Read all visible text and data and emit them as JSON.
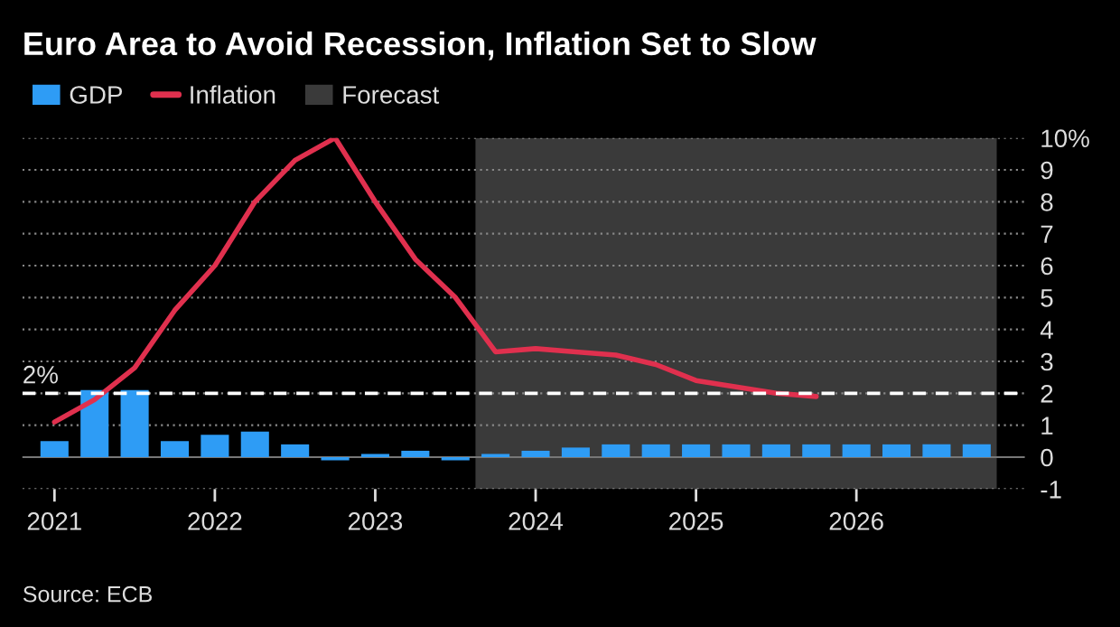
{
  "chart_data": {
    "type": "bar",
    "title": "Euro Area to Avoid Recession, Inflation Set to Slow",
    "x": [
      2021.0,
      2021.25,
      2021.5,
      2021.75,
      2022.0,
      2022.25,
      2022.5,
      2022.75,
      2023.0,
      2023.25,
      2023.5,
      2023.75,
      2024.0,
      2024.25,
      2024.5,
      2024.75,
      2025.0,
      2025.25,
      2025.5,
      2025.75,
      2026.0,
      2026.25,
      2026.5,
      2026.75
    ],
    "series": [
      {
        "name": "GDP",
        "color": "#2e9cf5",
        "values": [
          0.5,
          2.1,
          2.1,
          0.5,
          0.7,
          0.8,
          0.4,
          -0.1,
          0.1,
          0.2,
          -0.1,
          0.1,
          0.2,
          0.3,
          0.4,
          0.4,
          0.4,
          0.4,
          0.4,
          0.4,
          0.4,
          0.4,
          0.4,
          0.4
        ]
      },
      {
        "name": "Inflation",
        "type": "line",
        "color": "#e0304e",
        "values": [
          1.1,
          1.8,
          2.8,
          4.6,
          6.0,
          8.0,
          9.3,
          10.0,
          8.0,
          6.2,
          5.0,
          3.3,
          3.4,
          3.3,
          3.2,
          2.9,
          2.4,
          2.2,
          2.0,
          1.9,
          null,
          null,
          null,
          null
        ]
      }
    ],
    "bands": [
      {
        "axis": "x",
        "from": 2023.625,
        "to": 2026.875,
        "label": "Forecast",
        "color": "#3a3a3a"
      }
    ],
    "ref_lines": [
      {
        "axis": "y",
        "value": 2,
        "label": "2%",
        "color": "#ffffff",
        "line_style": "dashed"
      }
    ],
    "xlim": [
      2020.8,
      2027.05
    ],
    "xticks": [
      2021,
      2022,
      2023,
      2024,
      2025,
      2026
    ],
    "ylim": [
      -1,
      10
    ],
    "yticks": [
      -1,
      0,
      1,
      2,
      3,
      4,
      5,
      6,
      7,
      8,
      9,
      {
        "value": 10,
        "label": "10%"
      }
    ],
    "grid": "y",
    "legend": "top left",
    "annotations": [
      "Source: ECB"
    ]
  }
}
